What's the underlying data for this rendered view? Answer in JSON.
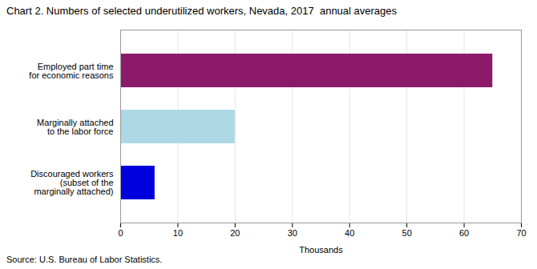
{
  "chart_data": {
    "type": "bar",
    "orientation": "horizontal",
    "title": "Chart 2. Numbers of selected underutilized workers, Nevada, 2017  annual averages",
    "categories": [
      "Discouraged workers\n(subset of the\nmarginally attached)",
      "Marginally attached\nto the labor force",
      "Employed part time\nfor economic reasons"
    ],
    "values": [
      6,
      20,
      65
    ],
    "colors": [
      "#0000dd",
      "#add8e6",
      "#8b1a6b"
    ],
    "xlabel": "Thousands",
    "xlim": [
      0,
      70
    ],
    "xticks": [
      0,
      10,
      20,
      30,
      40,
      50,
      60,
      70
    ],
    "grid": true,
    "caption": "Source: U.S. Bureau of Labor Statistics."
  }
}
